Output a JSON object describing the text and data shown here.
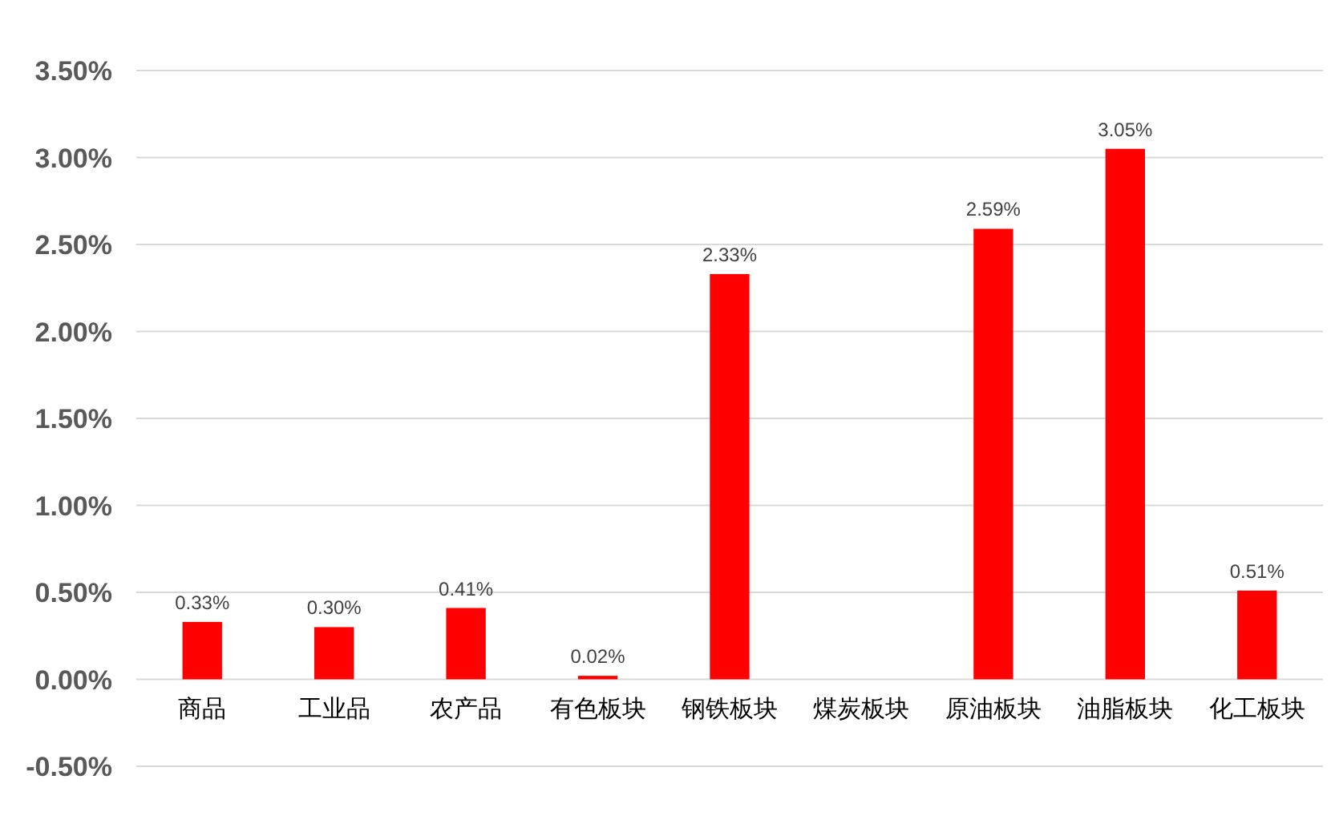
{
  "chart_data": {
    "type": "bar",
    "categories": [
      "商品",
      "工业品",
      "农产品",
      "有色板块",
      "钢铁板块",
      "煤炭板块",
      "原油板块",
      "油脂板块",
      "化工板块"
    ],
    "series": [
      {
        "color": "#ff0000",
        "values": [
          0.33,
          0.3,
          0.41,
          0.02,
          2.33,
          null,
          2.59,
          3.05,
          0.51
        ],
        "value_labels": [
          "0.33%",
          "0.30%",
          "0.41%",
          "0.02%",
          "2.33%",
          null,
          "2.59%",
          "3.05%",
          "0.51%"
        ]
      }
    ],
    "ylim": [
      -0.5,
      3.5
    ],
    "yticks": [
      {
        "value": -0.5,
        "label": "-0.50%"
      },
      {
        "value": 0,
        "label": "0.00%"
      },
      {
        "value": 0.5,
        "label": "0.50%"
      },
      {
        "value": 1,
        "label": "1.00%"
      },
      {
        "value": 1.5,
        "label": "1.50%"
      },
      {
        "value": 2,
        "label": "2.00%"
      },
      {
        "value": 2.5,
        "label": "2.50%"
      },
      {
        "value": 3,
        "label": "3.00%"
      },
      {
        "value": 3.5,
        "label": "3.50%"
      }
    ],
    "grid": "y"
  }
}
